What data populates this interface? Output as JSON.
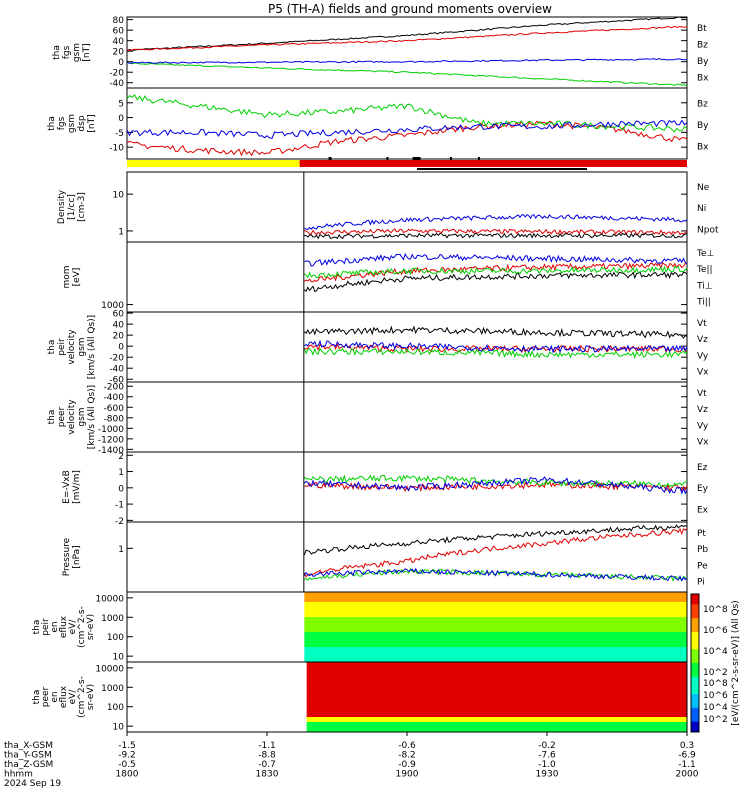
{
  "title": "P5 (TH-A) fields and ground moments overview",
  "colors": {
    "black": "#000000",
    "red": "#e00000",
    "green": "#00d000",
    "blue": "#0000e0",
    "yellow": "#ffff00"
  },
  "chart_data": {
    "type": "line",
    "date": "2024 Sep 19",
    "time_axis": {
      "range": [
        "18:00",
        "20:00"
      ],
      "tick_rows": [
        {
          "label": "tha_X-GSM",
          "values": [
            "-1.5",
            "-1.1",
            "-0.6",
            "-0.2",
            "0.3"
          ]
        },
        {
          "label": "tha_Y-GSM",
          "values": [
            "-9.2",
            "-8.8",
            "-8.2",
            "-7.6",
            "-6.9"
          ]
        },
        {
          "label": "tha_Z-GSM",
          "values": [
            "-0.5",
            "-0.7",
            "-0.9",
            "-1.0",
            "-1.1"
          ]
        },
        {
          "label": "hhmm",
          "values": [
            "1800",
            "1830",
            "1900",
            "1930",
            "2000"
          ]
        }
      ]
    },
    "panels": [
      {
        "ylabel": [
          "tha",
          "fgs",
          "gsm",
          "[nT]"
        ],
        "yticks": [
          "80",
          "60",
          "40",
          "20",
          "0",
          "-20",
          "-40"
        ],
        "ylim": [
          -50,
          85
        ],
        "series": [
          {
            "name": "Bt",
            "color": "#000000",
            "x": [
              0,
              30,
              60,
              90,
              120
            ],
            "y": [
              22,
              35,
              50,
              70,
              85
            ]
          },
          {
            "name": "Bz",
            "color": "#e00000",
            "x": [
              0,
              30,
              60,
              90,
              120
            ],
            "y": [
              22,
              32,
              40,
              55,
              67
            ]
          },
          {
            "name": "By",
            "color": "#00d000",
            "x": [
              0,
              30,
              60,
              90,
              120
            ],
            "y": [
              -3,
              -12,
              -20,
              -33,
              -45
            ]
          },
          {
            "name": "Bx",
            "color": "#0000e0",
            "x": [
              0,
              30,
              60,
              90,
              120
            ],
            "y": [
              -2,
              -1,
              0,
              3,
              5
            ]
          }
        ]
      },
      {
        "ylabel": [
          "tha",
          "fgs",
          "gsm",
          "dsp",
          "[nT]"
        ],
        "yticks": [
          "5",
          "0",
          "-5",
          "-10"
        ],
        "ylim": [
          -14,
          10
        ],
        "series": [
          {
            "name": "Bz",
            "color": "#e00000",
            "x": [
              0,
              15,
              30,
              45,
              60,
              75,
              90,
              105,
              120
            ],
            "y": [
              -9,
              -11,
              -12,
              -8,
              -6,
              -3,
              -2,
              -4,
              -8
            ]
          },
          {
            "name": "By",
            "color": "#00d000",
            "x": [
              0,
              15,
              30,
              45,
              60,
              75,
              90,
              105,
              120
            ],
            "y": [
              7,
              4,
              1,
              2,
              4,
              -2,
              -2,
              -3,
              -4
            ]
          },
          {
            "name": "Bx",
            "color": "#0000e0",
            "x": [
              0,
              15,
              30,
              45,
              60,
              75,
              90,
              105,
              120
            ],
            "y": [
              -5,
              -5,
              -6,
              -5,
              -4,
              -3,
              -3,
              -2,
              -2
            ]
          }
        ]
      },
      {
        "ylabel": [
          "Density",
          "[1/cc]",
          "[cm-3]"
        ],
        "yticks": [
          "10",
          "1"
        ],
        "ylim": [
          0.5,
          40
        ],
        "scale": "log",
        "series": [
          {
            "name": "Ne",
            "color": "#e00000",
            "x": [
              38,
              60,
              90,
              120
            ],
            "y": [
              0.9,
              1.0,
              0.95,
              0.9
            ]
          },
          {
            "name": "Ni",
            "color": "#000000",
            "x": [
              38,
              60,
              90,
              120
            ],
            "y": [
              0.7,
              0.75,
              0.75,
              0.75
            ]
          },
          {
            "name": "Npot",
            "color": "#0000e0",
            "x": [
              38,
              60,
              90,
              120
            ],
            "y": [
              1.2,
              2.0,
              2.5,
              2.0
            ]
          }
        ]
      },
      {
        "ylabel": [
          "mom",
          "[eV]"
        ],
        "yticks": [
          "1000"
        ],
        "ylim": [
          700,
          20000
        ],
        "scale": "log",
        "series": [
          {
            "name": "Te⊥",
            "color": "#e00000",
            "x": [
              38,
              60,
              90,
              120
            ],
            "y": [
              3000,
              5000,
              6000,
              6500
            ]
          },
          {
            "name": "Te||",
            "color": "#000000",
            "x": [
              38,
              60,
              90,
              120
            ],
            "y": [
              2000,
              3500,
              4000,
              4200
            ]
          },
          {
            "name": "Ti⊥",
            "color": "#0000e0",
            "x": [
              38,
              60,
              90,
              120
            ],
            "y": [
              7000,
              10000,
              9000,
              8000
            ]
          },
          {
            "name": "Ti||",
            "color": "#00d000",
            "x": [
              38,
              60,
              90,
              120
            ],
            "y": [
              4000,
              5000,
              5000,
              5500
            ]
          }
        ]
      },
      {
        "ylabel": [
          "tha",
          "peir",
          "velocity",
          "gsm",
          "[km/s (All Qs)]"
        ],
        "yticks": [
          "60",
          "40",
          "20",
          "0",
          "-20",
          "-40",
          "-60"
        ],
        "ylim": [
          -65,
          62
        ],
        "series": [
          {
            "name": "Vt",
            "color": "#000000",
            "x": [
              38,
              60,
              90,
              120
            ],
            "y": [
              25,
              30,
              25,
              20
            ]
          },
          {
            "name": "Vz",
            "color": "#e00000",
            "x": [
              38,
              60,
              90,
              120
            ],
            "y": [
              0,
              -5,
              -5,
              -5
            ]
          },
          {
            "name": "Vy",
            "color": "#00d000",
            "x": [
              38,
              60,
              90,
              120
            ],
            "y": [
              -10,
              -10,
              -15,
              -15
            ]
          },
          {
            "name": "Vx",
            "color": "#0000e0",
            "x": [
              38,
              60,
              90,
              120
            ],
            "y": [
              5,
              0,
              -5,
              -5
            ]
          }
        ]
      },
      {
        "ylabel": [
          "tha",
          "peer",
          "velocity",
          "gsm",
          "[km/s (All Qs)]"
        ],
        "yticks": [
          "-200",
          "-400",
          "-600",
          "-800",
          "-1000",
          "-1200",
          "-1400"
        ],
        "ylim": [
          -1450,
          -120
        ],
        "series": [
          {
            "name": "Vt",
            "color": "#000000",
            "x": [],
            "y": []
          },
          {
            "name": "Vz",
            "color": "#e00000",
            "x": [],
            "y": []
          },
          {
            "name": "Vy",
            "color": "#00d000",
            "x": [],
            "y": []
          },
          {
            "name": "Vx",
            "color": "#0000e0",
            "x": [],
            "y": []
          }
        ]
      },
      {
        "ylabel": [
          "E=-VxB",
          "[mV/m]"
        ],
        "yticks": [
          "2",
          "1",
          "0",
          "-1",
          "-2"
        ],
        "ylim": [
          -2.1,
          2.2
        ],
        "series": [
          {
            "name": "Ez",
            "color": "#e00000",
            "x": [
              38,
              60,
              90,
              120
            ],
            "y": [
              0.2,
              0.0,
              0.2,
              0.0
            ]
          },
          {
            "name": "Ey",
            "color": "#00d000",
            "x": [
              38,
              60,
              90,
              120
            ],
            "y": [
              0.5,
              0.6,
              0.3,
              0.2
            ]
          },
          {
            "name": "Ex",
            "color": "#0000e0",
            "x": [
              38,
              60,
              90,
              120
            ],
            "y": [
              0.3,
              0.0,
              0.5,
              -0.2
            ]
          }
        ]
      },
      {
        "ylabel": [
          "Pressure",
          "[nPa]"
        ],
        "yticks": [
          "1"
        ],
        "ylim": [
          0.1,
          4
        ],
        "scale": "log",
        "series": [
          {
            "name": "Pt",
            "color": "#000000",
            "x": [
              38,
              60,
              90,
              120
            ],
            "y": [
              0.8,
              1.3,
              2.2,
              3.2
            ]
          },
          {
            "name": "Pb",
            "color": "#e00000",
            "x": [
              38,
              60,
              90,
              120
            ],
            "y": [
              0.25,
              0.5,
              1.3,
              2.5
            ]
          },
          {
            "name": "Pe",
            "color": "#00d000",
            "x": [
              38,
              60,
              90,
              120
            ],
            "y": [
              0.2,
              0.3,
              0.25,
              0.2
            ]
          },
          {
            "name": "Pi",
            "color": "#0000e0",
            "x": [
              38,
              60,
              90,
              120
            ],
            "y": [
              0.25,
              0.3,
              0.25,
              0.2
            ]
          }
        ]
      }
    ],
    "spectrograms": [
      {
        "ylabel": [
          "tha",
          "peir",
          "en",
          "eflux",
          "eV/",
          "(cm^2-s-",
          "sr-eV)"
        ],
        "yticks": [
          "10000",
          "1000",
          "100",
          "10"
        ],
        "ylim": [
          5,
          20000
        ],
        "scale": "log"
      },
      {
        "ylabel": [
          "tha",
          "peer",
          "en",
          "eflux",
          "eV/",
          "(cm^2-s-",
          "sr-eV)"
        ],
        "yticks": [
          "10000",
          "1000",
          "100",
          "10"
        ],
        "ylim": [
          5,
          20000
        ],
        "scale": "log"
      }
    ],
    "colorbar": {
      "label": "[eV/(cm^2-s-sr-eV)] (All Qs)",
      "ticks": [
        "10^8",
        "10^6",
        "10^4",
        "10^2"
      ],
      "ticks2": [
        "10^8",
        "10^6",
        "10^4",
        "10^2"
      ]
    }
  }
}
